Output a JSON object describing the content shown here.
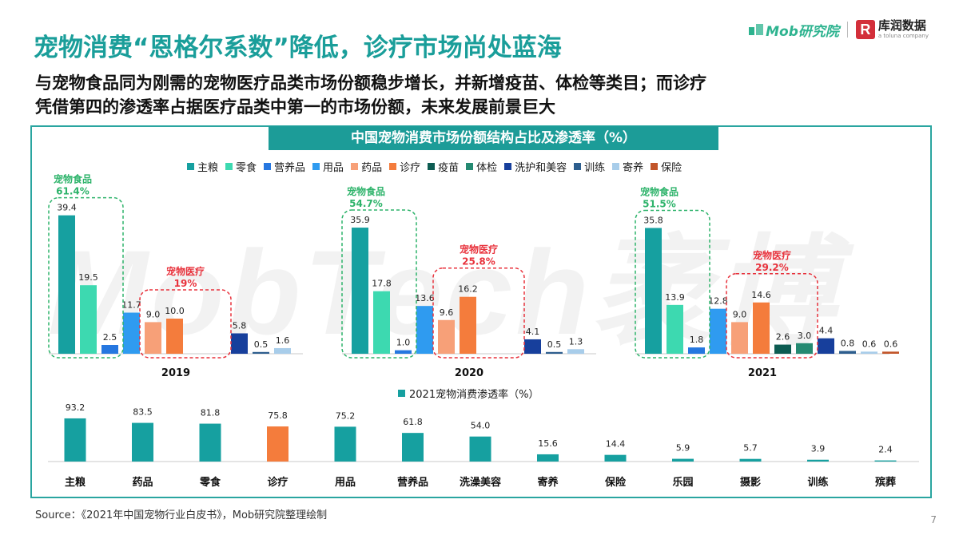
{
  "header": {
    "title": "宠物消费“恩格尔系数”降低，诊疗市场尚处蓝海",
    "subtitle_line1": "与宠物食品同为刚需的宠物医疗品类市场份额稳步增长，并新增疫苗、体检等类目；而诊疗",
    "subtitle_line2": "凭借第四的渗透率占据医疗品类中第一的市场份额，未来发展前景巨大"
  },
  "logos": {
    "mob": "Mob研究院",
    "kudata_cn": "库润数据",
    "kudata_en": "a toluna company",
    "kudata_mark": "R"
  },
  "watermark": "MobTech袤博",
  "footer": {
    "source": "Source：《2021年中国宠物行业白皮书》，Mob研究院整理绘制",
    "page": "7"
  },
  "colors": {
    "frame": "#2aa5a0",
    "title": "#1a9e9a",
    "food_group": "#2db36a",
    "medical_group": "#e8323c"
  },
  "chart_data": [
    {
      "type": "bar",
      "title": "中国宠物消费市场份额结构占比及渗透率（%）",
      "legend_position": "top",
      "categories": [
        "2019",
        "2020",
        "2021"
      ],
      "series": [
        {
          "name": "主粮",
          "color": "#16a0a0",
          "values": [
            39.4,
            35.9,
            35.8
          ]
        },
        {
          "name": "零食",
          "color": "#3dd9b0",
          "values": [
            19.5,
            17.8,
            13.9
          ]
        },
        {
          "name": "营养品",
          "color": "#2677e0",
          "values": [
            2.5,
            1.0,
            1.8
          ]
        },
        {
          "name": "用品",
          "color": "#2f9bf0",
          "values": [
            11.7,
            13.6,
            12.8
          ]
        },
        {
          "name": "药品",
          "color": "#f7a078",
          "values": [
            9.0,
            9.6,
            9.0
          ]
        },
        {
          "name": "诊疗",
          "color": "#f47c3c",
          "values": [
            10.0,
            16.2,
            14.6
          ]
        },
        {
          "name": "疫苗",
          "color": "#0d5c52",
          "values": [
            null,
            null,
            2.6
          ]
        },
        {
          "name": "体检",
          "color": "#258a72",
          "values": [
            null,
            null,
            3.0
          ]
        },
        {
          "name": "洗护和美容",
          "color": "#173f9c",
          "values": [
            5.8,
            4.1,
            4.4
          ]
        },
        {
          "name": "训练",
          "color": "#2d5e8e",
          "values": [
            0.5,
            0.5,
            0.8
          ]
        },
        {
          "name": "寄养",
          "color": "#a8cdea",
          "values": [
            1.6,
            1.3,
            0.6
          ]
        },
        {
          "name": "保险",
          "color": "#c2552a",
          "values": [
            null,
            null,
            0.6
          ]
        }
      ],
      "groups": [
        {
          "food": {
            "label": "宠物食品",
            "value": "61.4%"
          },
          "medical": {
            "label": "宠物医疗",
            "value": "19%"
          }
        },
        {
          "food": {
            "label": "宠物食品",
            "value": "54.7%"
          },
          "medical": {
            "label": "宠物医疗",
            "value": "25.8%"
          }
        },
        {
          "food": {
            "label": "宠物食品",
            "value": "51.5%"
          },
          "medical": {
            "label": "宠物医疗",
            "value": "29.2%"
          }
        }
      ]
    },
    {
      "type": "bar",
      "title": "2021宠物消费渗透率（%）",
      "series_name": "2021宠物消费渗透率（%）",
      "color": "#16a0a0",
      "highlight_color": "#f47c3c",
      "highlight_index": 3,
      "categories": [
        "主粮",
        "药品",
        "零食",
        "诊疗",
        "用品",
        "营养品",
        "洗澡美容",
        "寄养",
        "保险",
        "乐园",
        "摄影",
        "训练",
        "殡葬"
      ],
      "values": [
        93.2,
        83.5,
        81.8,
        75.8,
        75.2,
        61.8,
        54.0,
        15.6,
        14.4,
        5.9,
        5.7,
        3.9,
        2.4
      ]
    }
  ]
}
